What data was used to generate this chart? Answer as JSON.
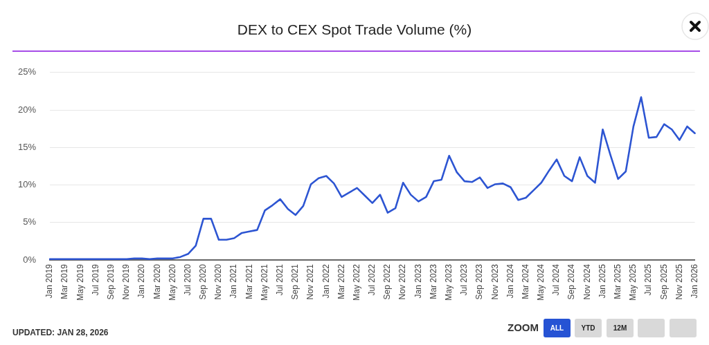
{
  "chart_data": {
    "type": "line",
    "title": "DEX to CEX Spot Trade Volume (%)",
    "categories": [
      "Jan 2019",
      null,
      "Mar 2019",
      null,
      "May 2019",
      null,
      "Jul 2019",
      null,
      "Sep 2019",
      null,
      "Nov 2019",
      null,
      "Jan 2020",
      null,
      "Mar 2020",
      null,
      "May 2020",
      null,
      "Jul 2020",
      null,
      "Sep 2020",
      null,
      "Nov 2020",
      null,
      "Jan 2021",
      null,
      "Mar 2021",
      null,
      "May 2021",
      null,
      "Jul 2021",
      null,
      "Sep 2021",
      null,
      "Nov 2021",
      null,
      "Jan 2022",
      null,
      "Mar 2022",
      null,
      "May 2022",
      null,
      "Jul 2022",
      null,
      "Sep 2022",
      null,
      "Nov 2022",
      null,
      "Jan 2023",
      null,
      "Mar 2023",
      null,
      "May 2023",
      null,
      "Jul 2023",
      null,
      "Sep 2023",
      null,
      "Nov 2023",
      null,
      "Jan 2024",
      null,
      "Mar 2024",
      null,
      "May 2024",
      null,
      "Jul 2024",
      null,
      "Sep 2024",
      null,
      "Nov 2024",
      null,
      "Jan 2025",
      null,
      "Mar 2025",
      null,
      "May 2025",
      null,
      "Jul 2025",
      null,
      "Sep 2025",
      null,
      "Nov 2025",
      null,
      "Jan 2026"
    ],
    "values": [
      0.1,
      0.1,
      0.1,
      0.1,
      0.1,
      0.1,
      0.1,
      0.1,
      0.1,
      0.1,
      0.1,
      0.2,
      0.2,
      0.1,
      0.2,
      0.2,
      0.2,
      0.4,
      0.8,
      1.9,
      5.5,
      5.5,
      2.7,
      2.7,
      2.9,
      3.6,
      3.8,
      4.0,
      6.6,
      7.3,
      8.1,
      6.8,
      6.0,
      7.2,
      10.1,
      10.9,
      11.2,
      10.2,
      8.4,
      9.0,
      9.6,
      8.6,
      7.6,
      8.7,
      6.3,
      6.9,
      10.3,
      8.7,
      7.8,
      8.4,
      10.5,
      10.7,
      13.9,
      11.7,
      10.5,
      10.4,
      11.0,
      9.6,
      10.1,
      10.2,
      9.7,
      8.0,
      8.3,
      9.3,
      10.3,
      11.9,
      13.4,
      11.2,
      10.5,
      13.7,
      11.2,
      10.3,
      17.4,
      14.0,
      10.8,
      11.8,
      17.8,
      21.7,
      16.3,
      16.4,
      18.1,
      17.4,
      16.0,
      17.8,
      16.9
    ],
    "color": "#2d55d2",
    "line_style": "solid",
    "ylim": [
      0,
      25
    ],
    "yticks": [
      {
        "value": 0,
        "label": "0%"
      },
      {
        "value": 5,
        "label": "5%"
      },
      {
        "value": 10,
        "label": "10%"
      },
      {
        "value": 15,
        "label": "15%"
      },
      {
        "value": 20,
        "label": "20%"
      },
      {
        "value": 25,
        "label": "25%"
      }
    ],
    "grid": "y",
    "annotations": [
      "UPDATED: JAN 28, 2026",
      "ZOOM",
      "ALL",
      "YTD",
      "12M"
    ]
  }
}
